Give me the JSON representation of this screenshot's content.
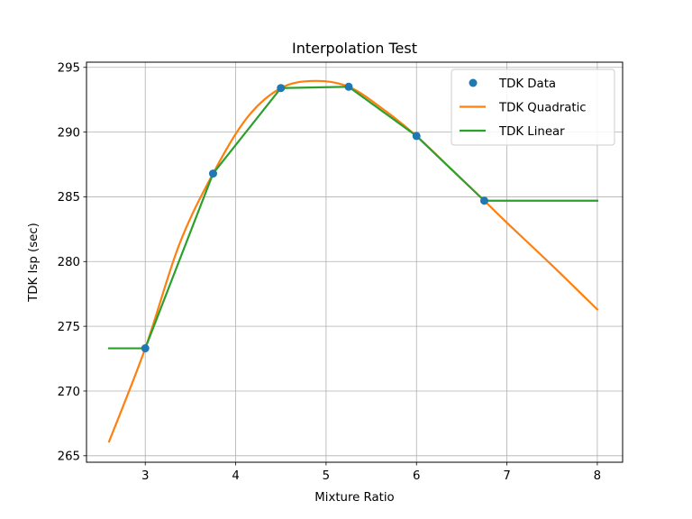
{
  "chart_data": {
    "type": "line",
    "title": "Interpolation Test",
    "xlabel": "Mixture Ratio",
    "ylabel": "TDK Isp (sec)",
    "xlim": [
      2.35,
      8.28
    ],
    "ylim": [
      264.5,
      295.4
    ],
    "xticks": [
      3,
      4,
      5,
      6,
      7,
      8
    ],
    "yticks": [
      265,
      270,
      275,
      280,
      285,
      290,
      295
    ],
    "grid": true,
    "legend_position": "top-right",
    "series": [
      {
        "name": "TDK Data",
        "kind": "points",
        "color": "#1f77b4",
        "x": [
          3.0,
          3.75,
          4.5,
          5.25,
          6.0,
          6.75
        ],
        "y": [
          273.3,
          286.8,
          293.4,
          293.5,
          289.7,
          284.7
        ]
      },
      {
        "name": "TDK Quadratic",
        "kind": "line",
        "color": "#ff7f0e",
        "x": [
          2.6,
          3.0,
          3.375,
          3.75,
          4.125,
          4.5,
          4.875,
          5.25,
          5.625,
          6.0,
          6.375,
          6.75,
          7.0,
          7.5,
          8.0
        ],
        "y": [
          266.1,
          273.3,
          281.3,
          286.8,
          291.1,
          293.4,
          293.95,
          293.5,
          291.8,
          289.7,
          287.2,
          284.7,
          283.0,
          279.7,
          276.3
        ]
      },
      {
        "name": "TDK Linear",
        "kind": "line",
        "color": "#2ca02c",
        "x": [
          2.6,
          3.0,
          3.75,
          4.5,
          5.25,
          6.0,
          6.75,
          8.0
        ],
        "y": [
          273.3,
          273.3,
          286.8,
          293.4,
          293.5,
          289.7,
          284.7,
          284.7
        ]
      }
    ]
  }
}
